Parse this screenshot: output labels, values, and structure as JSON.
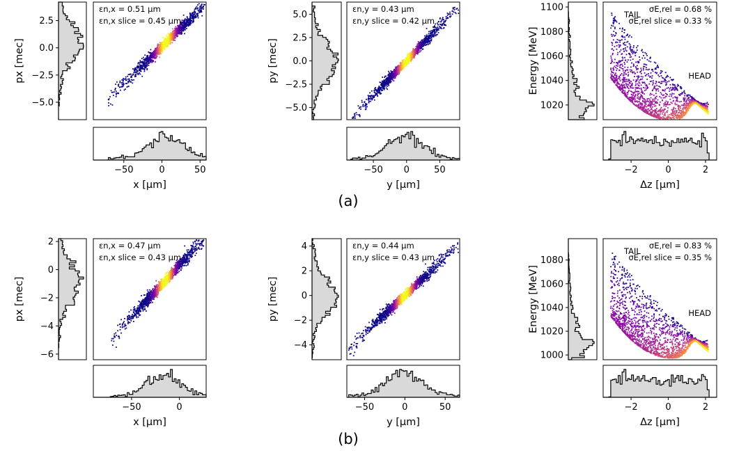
{
  "caption_a": "(a)",
  "caption_b": "(b)",
  "colors": {
    "hist_fill": "#d9d9d9",
    "hist_line": "#000000"
  },
  "chart_data": [
    {
      "type": "scatter",
      "id": "a-x",
      "xlabel": "x [µm]",
      "ylabel": "px [mec]",
      "xlim": [
        -90,
        58
      ],
      "ylim": [
        -6.6,
        4.2
      ],
      "xticks": [
        "-50",
        "0",
        "50"
      ],
      "xtick_values": [
        -50,
        0,
        50
      ],
      "yticks": [
        "2.5",
        "0.0",
        "-2.5",
        "-5.0"
      ],
      "ytick_values": [
        2.5,
        0,
        -2.5,
        -5
      ],
      "annotation": [
        "εn,x = 0.51 µm",
        "εn,x slice = 0.45 µm"
      ],
      "center_x": 5,
      "center_y": 0.45,
      "slope": 0.068,
      "line_from": -85,
      "line_to": 52,
      "spread": 0.35
    },
    {
      "type": "scatter",
      "id": "a-y",
      "xlabel": "y [µm]",
      "ylabel": "py [mec]",
      "xlim": [
        -90,
        80
      ],
      "ylim": [
        -6.3,
        6.3
      ],
      "xticks": [
        "-50",
        "0",
        "50"
      ],
      "xtick_values": [
        -50,
        0,
        50
      ],
      "yticks": [
        "5.0",
        "2.5",
        "0.0",
        "-2.5",
        "-5.0"
      ],
      "ytick_values": [
        5,
        2.5,
        0,
        -2.5,
        -5
      ],
      "annotation": [
        "εn,y = 0.43 µm",
        "εn,y slice = 0.42 µm"
      ],
      "center_x": 0,
      "center_y": 0,
      "slope": 0.075,
      "line_from": -75,
      "line_to": 75,
      "spread": 0.35
    },
    {
      "type": "scatter",
      "id": "a-e",
      "xlabel": "Δz [µm]",
      "ylabel": "Energy [MeV]",
      "xlim": [
        -3.5,
        2.6
      ],
      "ylim": [
        1008,
        1104
      ],
      "xticks": [
        "-2",
        "0",
        "2"
      ],
      "xtick_values": [
        -2,
        0,
        2
      ],
      "yticks": [
        "1100",
        "1080",
        "1060",
        "1040",
        "1020"
      ],
      "ytick_values": [
        1100,
        1080,
        1060,
        1040,
        1020
      ],
      "annotation": [
        "σE,rel = 0.68 %",
        "σE,rel slice = 0.33 %"
      ],
      "labels": [
        "TAIL",
        "HEAD"
      ],
      "energy_min": 1012,
      "energy_max": 1100
    },
    {
      "type": "scatter",
      "id": "b-x",
      "xlabel": "x [µm]",
      "ylabel": "px [mec]",
      "xlim": [
        -90,
        28
      ],
      "ylim": [
        -6.4,
        2.2
      ],
      "xticks": [
        "-50",
        "0"
      ],
      "xtick_values": [
        -50,
        0
      ],
      "yticks": [
        "2",
        "0",
        "-2",
        "-4",
        "-6"
      ],
      "ytick_values": [
        2,
        0,
        -2,
        -4,
        -6
      ],
      "annotation": [
        "εn,x = 0.47 µm",
        "εn,x slice = 0.43 µm"
      ],
      "center_x": -15,
      "center_y": -0.8,
      "slope": 0.074,
      "line_from": -80,
      "line_to": 22,
      "spread": 0.28
    },
    {
      "type": "scatter",
      "id": "b-y",
      "xlabel": "y [µm]",
      "ylabel": "py [mec]",
      "xlim": [
        -72,
        68
      ],
      "ylim": [
        -5.2,
        4.6
      ],
      "xticks": [
        "-50",
        "0",
        "50"
      ],
      "xtick_values": [
        -50,
        0,
        50
      ],
      "yticks": [
        "4",
        "2",
        "0",
        "-2",
        "-4"
      ],
      "ytick_values": [
        4,
        2,
        0,
        -2,
        -4
      ],
      "annotation": [
        "εn,y = 0.44 µm",
        "εn,y slice = 0.43 µm"
      ],
      "center_x": 0,
      "center_y": 0,
      "slope": 0.062,
      "line_from": -65,
      "line_to": 62,
      "spread": 0.28
    },
    {
      "type": "scatter",
      "id": "b-e",
      "xlabel": "Δz [µm]",
      "ylabel": "Energy [MeV]",
      "xlim": [
        -3.5,
        2.6
      ],
      "ylim": [
        996,
        1098
      ],
      "xticks": [
        "-2",
        "0",
        "2"
      ],
      "xtick_values": [
        -2,
        0,
        2
      ],
      "yticks": [
        "1080",
        "1060",
        "1040",
        "1020",
        "1000"
      ],
      "ytick_values": [
        1080,
        1060,
        1040,
        1020,
        1000
      ],
      "annotation": [
        "σE,rel = 0.83 %",
        "σE,rel slice = 0.35 %"
      ],
      "labels": [
        "TAIL",
        "HEAD"
      ],
      "energy_min": 1002,
      "energy_max": 1092
    }
  ]
}
